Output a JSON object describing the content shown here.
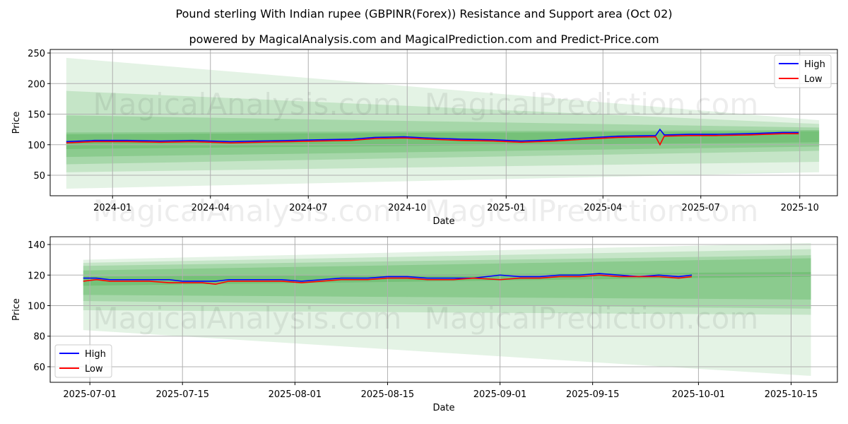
{
  "title": "Pound sterling With Indian rupee (GBPINR(Forex)) Resistance and Support area (Oct 02)",
  "subtitle": "powered by MagicalAnalysis.com and MagicalPrediction.com and Predict-Price.com",
  "watermarks": [
    "MagicalAnalysis.com",
    "MagicalPrediction.com"
  ],
  "colors": {
    "high": "#0000ff",
    "low": "#ff0000",
    "band": "#4caf50"
  },
  "chart_data": [
    {
      "type": "line",
      "xlabel": "Date",
      "ylabel": "Price",
      "ylim": [
        16.5,
        255.8
      ],
      "xlim": [
        "2023-11-04",
        "2025-11-05"
      ],
      "yticks": [
        50,
        100,
        150,
        200,
        250
      ],
      "xticks": [
        "2024-01-01",
        "2024-04-01",
        "2024-07-01",
        "2024-10-01",
        "2025-01-01",
        "2025-04-01",
        "2025-07-01",
        "2025-10-01"
      ],
      "xtick_labels": [
        "2024-01",
        "2024-04",
        "2024-07",
        "2024-10",
        "2025-01",
        "2025-04",
        "2025-07",
        "2025-10"
      ],
      "legend": {
        "position": "top-right",
        "entries": [
          "High",
          "Low"
        ]
      },
      "grid": true,
      "bands": {
        "x": [
          "2023-11-19",
          "2025-10-19"
        ],
        "levels": [
          [
            242,
            140,
            28,
            55
          ],
          [
            188,
            134,
            55,
            72
          ],
          [
            148,
            128,
            68,
            90
          ],
          [
            120,
            124,
            80,
            97
          ],
          [
            117,
            122,
            93,
            104
          ]
        ]
      },
      "series": [
        {
          "name": "High",
          "x": [
            "2023-11-19",
            "2023-12-15",
            "2024-01-15",
            "2024-02-15",
            "2024-03-15",
            "2024-04-20",
            "2024-05-15",
            "2024-06-15",
            "2024-07-10",
            "2024-08-10",
            "2024-09-01",
            "2024-09-28",
            "2024-10-20",
            "2024-11-20",
            "2024-12-20",
            "2025-01-15",
            "2025-02-15",
            "2025-03-15",
            "2025-04-15",
            "2025-05-20",
            "2025-05-24",
            "2025-05-28",
            "2025-06-20",
            "2025-07-15",
            "2025-08-15",
            "2025-09-15",
            "2025-09-30"
          ],
          "values": [
            105,
            107,
            107,
            106,
            107,
            105,
            106,
            107,
            108,
            109,
            112,
            113,
            111,
            109,
            108,
            106,
            108,
            111,
            114,
            115,
            125,
            116,
            117,
            117,
            118,
            120,
            120
          ]
        },
        {
          "name": "Low",
          "x": [
            "2023-11-19",
            "2023-12-15",
            "2024-01-15",
            "2024-02-15",
            "2024-03-15",
            "2024-04-20",
            "2024-05-15",
            "2024-06-15",
            "2024-07-10",
            "2024-08-10",
            "2024-09-01",
            "2024-09-28",
            "2024-10-20",
            "2024-11-20",
            "2024-12-20",
            "2025-01-15",
            "2025-02-15",
            "2025-03-15",
            "2025-04-15",
            "2025-05-20",
            "2025-05-24",
            "2025-05-28",
            "2025-06-20",
            "2025-07-15",
            "2025-08-15",
            "2025-09-15",
            "2025-09-30"
          ],
          "values": [
            103,
            105,
            105,
            104,
            105,
            103,
            104,
            105,
            106,
            107,
            110,
            111,
            109,
            107,
            106,
            104,
            106,
            109,
            112,
            113,
            100,
            114,
            115,
            115,
            116,
            118,
            118
          ]
        }
      ]
    },
    {
      "type": "line",
      "xlabel": "Date",
      "ylabel": "Price",
      "ylim": [
        49.8,
        145.1
      ],
      "xlim": [
        "2025-06-25",
        "2025-10-22"
      ],
      "yticks": [
        60,
        80,
        100,
        120,
        140
      ],
      "xticks": [
        "2025-07-01",
        "2025-07-15",
        "2025-08-01",
        "2025-08-15",
        "2025-09-01",
        "2025-09-15",
        "2025-10-01",
        "2025-10-15"
      ],
      "xtick_labels": [
        "2025-07-01",
        "2025-07-15",
        "2025-08-01",
        "2025-08-15",
        "2025-09-01",
        "2025-09-15",
        "2025-10-01",
        "2025-10-15"
      ],
      "legend": {
        "position": "bottom-left",
        "entries": [
          "High",
          "Low"
        ]
      },
      "grid": true,
      "bands": {
        "x": [
          "2025-06-30",
          "2025-10-18"
        ],
        "levels": [
          [
            130,
            141,
            84,
            54
          ],
          [
            128,
            137,
            97,
            94
          ],
          [
            126,
            133,
            103,
            98
          ],
          [
            123,
            131,
            107,
            104
          ],
          [
            119,
            122,
            113,
            119
          ]
        ]
      },
      "series": [
        {
          "name": "High",
          "x": [
            "2025-06-30",
            "2025-07-02",
            "2025-07-04",
            "2025-07-07",
            "2025-07-10",
            "2025-07-13",
            "2025-07-15",
            "2025-07-18",
            "2025-07-20",
            "2025-07-22",
            "2025-07-25",
            "2025-07-28",
            "2025-07-30",
            "2025-08-02",
            "2025-08-05",
            "2025-08-08",
            "2025-08-12",
            "2025-08-15",
            "2025-08-18",
            "2025-08-21",
            "2025-08-25",
            "2025-08-28",
            "2025-09-01",
            "2025-09-04",
            "2025-09-07",
            "2025-09-10",
            "2025-09-13",
            "2025-09-16",
            "2025-09-19",
            "2025-09-22",
            "2025-09-25",
            "2025-09-28",
            "2025-09-30"
          ],
          "values": [
            118,
            118,
            117,
            117,
            117,
            117,
            116,
            116,
            116,
            117,
            117,
            117,
            117,
            116,
            117,
            118,
            118,
            119,
            119,
            118,
            118,
            118,
            120,
            119,
            119,
            120,
            120,
            121,
            120,
            119,
            120,
            119,
            120
          ]
        },
        {
          "name": "Low",
          "x": [
            "2025-06-30",
            "2025-07-02",
            "2025-07-04",
            "2025-07-07",
            "2025-07-10",
            "2025-07-13",
            "2025-07-15",
            "2025-07-18",
            "2025-07-20",
            "2025-07-22",
            "2025-07-25",
            "2025-07-28",
            "2025-07-30",
            "2025-08-02",
            "2025-08-05",
            "2025-08-08",
            "2025-08-12",
            "2025-08-15",
            "2025-08-18",
            "2025-08-21",
            "2025-08-25",
            "2025-08-28",
            "2025-09-01",
            "2025-09-04",
            "2025-09-07",
            "2025-09-10",
            "2025-09-13",
            "2025-09-16",
            "2025-09-19",
            "2025-09-22",
            "2025-09-25",
            "2025-09-28",
            "2025-09-30"
          ],
          "values": [
            116,
            117,
            116,
            116,
            116,
            115,
            115,
            115,
            114,
            116,
            116,
            116,
            116,
            115,
            116,
            117,
            117,
            118,
            118,
            117,
            117,
            118,
            117,
            118,
            118,
            119,
            119,
            120,
            119,
            119,
            119,
            118,
            119
          ]
        }
      ]
    }
  ]
}
